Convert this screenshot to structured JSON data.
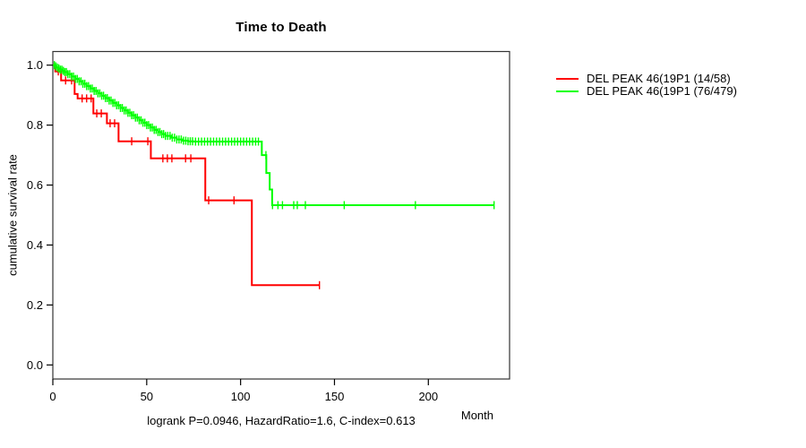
{
  "chart_data": {
    "type": "line",
    "subtype": "kaplan-meier-step-curves",
    "title": "Time to Death",
    "xlabel": "Month",
    "ylabel": "cumulative survival rate",
    "caption": "logrank P=0.0946, HazardRatio=1.6, C-index=0.613",
    "xlim": [
      0,
      243
    ],
    "ylim": [
      0,
      1
    ],
    "x_ticks": [
      0,
      50,
      100,
      150,
      200
    ],
    "y_ticks": [
      0.0,
      0.2,
      0.4,
      0.6,
      0.8,
      1.0
    ],
    "grid": false,
    "legend_position": "right-outside",
    "series": [
      {
        "name": "DEL PEAK 46(19P1 (14/58)",
        "color": "#ff0000",
        "end_month": 142.1,
        "steps": [
          [
            0,
            1.0
          ],
          [
            1.3,
            0.979
          ],
          [
            4.4,
            0.949
          ],
          [
            11.6,
            0.904
          ],
          [
            13.2,
            0.889
          ],
          [
            21.6,
            0.839
          ],
          [
            28.8,
            0.806
          ],
          [
            35,
            0.746
          ],
          [
            52.2,
            0.689
          ],
          [
            81.2,
            0.549
          ],
          [
            106,
            0.266
          ]
        ],
        "censor_months": [
          2.9,
          6.8,
          10,
          15.6,
          18,
          20.4,
          23.4,
          25.8,
          30.5,
          32.9,
          42,
          50.6,
          58.6,
          61,
          63.4,
          70.7,
          73.5,
          83,
          96.5,
          142
        ]
      },
      {
        "name": "DEL PEAK 46(19P1 (76/479)",
        "color": "#00ff00",
        "end_month": 235,
        "steps": [
          [
            0,
            1.0
          ],
          [
            1,
            0.996
          ],
          [
            2,
            0.992
          ],
          [
            3,
            0.989
          ],
          [
            4,
            0.985
          ],
          [
            5,
            0.981
          ],
          [
            6,
            0.977
          ],
          [
            8,
            0.97
          ],
          [
            10,
            0.962
          ],
          [
            12,
            0.954
          ],
          [
            14,
            0.946
          ],
          [
            16,
            0.938
          ],
          [
            18,
            0.93
          ],
          [
            20,
            0.922
          ],
          [
            22,
            0.914
          ],
          [
            24,
            0.906
          ],
          [
            26,
            0.898
          ],
          [
            28,
            0.89
          ],
          [
            30,
            0.882
          ],
          [
            32,
            0.874
          ],
          [
            34,
            0.866
          ],
          [
            36,
            0.857
          ],
          [
            38,
            0.849
          ],
          [
            40,
            0.841
          ],
          [
            42,
            0.833
          ],
          [
            44,
            0.825
          ],
          [
            46,
            0.816
          ],
          [
            48,
            0.808
          ],
          [
            50,
            0.8
          ],
          [
            52,
            0.792
          ],
          [
            54,
            0.784
          ],
          [
            56,
            0.777
          ],
          [
            58,
            0.77
          ],
          [
            60,
            0.764
          ],
          [
            63,
            0.758
          ],
          [
            66,
            0.752
          ],
          [
            69,
            0.748
          ],
          [
            72,
            0.746
          ],
          [
            75,
            0.745
          ],
          [
            111.3,
            0.7
          ],
          [
            113.7,
            0.64
          ],
          [
            115.5,
            0.585
          ],
          [
            116.8,
            0.533
          ]
        ],
        "censor_months": [
          0.8,
          1.6,
          2.4,
          3.2,
          4,
          4.8,
          5.6,
          6.4,
          7.2,
          8,
          9,
          10,
          11,
          12,
          13,
          14,
          15,
          16,
          17,
          18,
          19,
          20,
          21,
          22,
          23,
          24,
          25,
          26,
          27,
          28,
          29,
          30,
          31,
          32,
          33,
          34,
          35,
          36,
          37,
          38,
          39,
          40,
          41,
          42,
          43,
          44,
          45,
          46,
          47,
          48,
          49,
          50,
          51,
          52,
          53,
          54,
          55,
          56,
          57,
          58,
          59,
          60,
          61.2,
          62.4,
          63.6,
          64.8,
          66,
          67.2,
          68.4,
          69.6,
          70.8,
          72,
          73.2,
          74.4,
          76,
          77.6,
          79.2,
          80.8,
          82.4,
          84,
          85.6,
          87.2,
          88.8,
          90.4,
          92,
          93.6,
          95.2,
          96.8,
          98.4,
          100,
          101.6,
          103.2,
          104.8,
          106.4,
          108,
          109.5,
          113.5,
          117,
          119.9,
          122.3,
          128.3,
          130.2,
          134.5,
          155.2,
          193.1,
          235
        ]
      }
    ]
  }
}
